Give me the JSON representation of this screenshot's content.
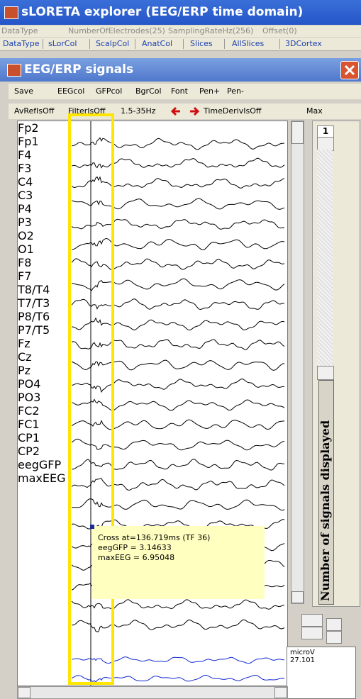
{
  "app_title": "sLORETA explorer (EEG/ERP time domain)",
  "info_bar": [
    "DataType",
    "NumberOfElectrodes(25)",
    "SamplingRateHz(256)",
    "Offset(0)"
  ],
  "tabs": [
    "DataType",
    "sLorCol",
    "ScalpCol",
    "AnatCol",
    "Slices",
    "AllSlices",
    "3DCortex"
  ],
  "window_title": "EEG/ERP signals",
  "toolbar1": [
    "Save",
    "EEGcol",
    "GFPcol",
    "BgrCol",
    "Font",
    "Pen+",
    "Pen-"
  ],
  "toolbar2": [
    "AvRefIsOff",
    "FilterIsOff",
    "1.5-35Hz",
    "TimeDerivIsOff",
    "Max"
  ],
  "channels": [
    "Fp2",
    "Fp1",
    "F4",
    "F3",
    "C4",
    "C3",
    "P4",
    "P3",
    "O2",
    "O1",
    "F8",
    "F7",
    "T8/T4",
    "T7/T3",
    "P8/T6",
    "P7/T5",
    "Fz",
    "Cz",
    "Pz",
    "PO4",
    "PO3",
    "FC2",
    "FC1",
    "CP1",
    "CP2"
  ],
  "summary_channels": [
    "eegGFP",
    "maxEEG"
  ],
  "tooltip": [
    "Cross at=136.719ms (TF 36)",
    "eegGFP = 3.14633",
    "maxEEG = 6.95048"
  ],
  "signals_count": "1",
  "side_label": "Number of signals displayed",
  "readout": {
    "unit": "microV",
    "value": "27.101"
  }
}
